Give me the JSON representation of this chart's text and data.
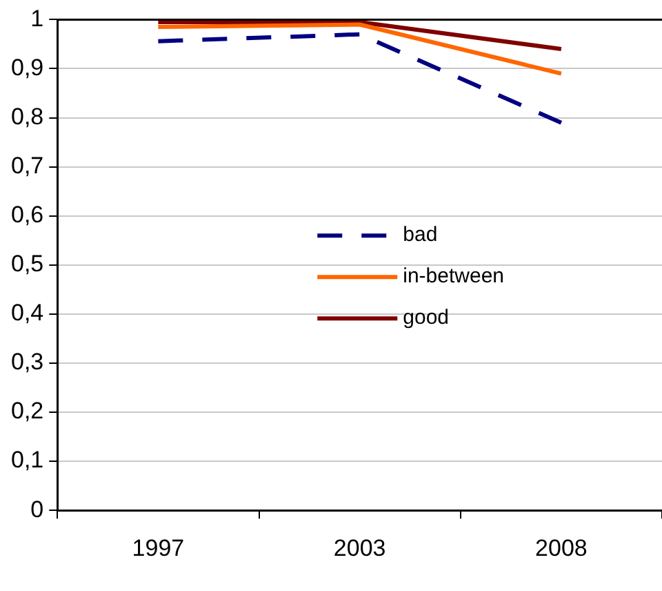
{
  "chart_data": {
    "type": "line",
    "categories": [
      "1997",
      "2003",
      "2008"
    ],
    "series": [
      {
        "name": "bad",
        "color": "#000080",
        "values": [
          0.956,
          0.97,
          0.79
        ],
        "line_style": "dashed"
      },
      {
        "name": "in-between",
        "color": "#ff6600",
        "values": [
          0.985,
          0.99,
          0.89
        ],
        "line_style": "solid"
      },
      {
        "name": "good",
        "color": "#800000",
        "values": [
          0.995,
          0.995,
          0.94
        ],
        "line_style": "solid"
      }
    ],
    "ylim": [
      0,
      1
    ],
    "yticks": [
      0,
      {
        "value": 0.1,
        "label": "0,1"
      },
      {
        "value": 0.2,
        "label": "0,2"
      },
      {
        "value": 0.3,
        "label": "0,3"
      },
      {
        "value": 0.4,
        "label": "0,4"
      },
      {
        "value": 0.5,
        "label": "0,5"
      },
      {
        "value": 0.6,
        "label": "0,6"
      },
      {
        "value": 0.7,
        "label": "0,7"
      },
      {
        "value": 0.8,
        "label": "0,8"
      },
      {
        "value": 0.9,
        "label": "0,9"
      },
      1
    ],
    "grid": "y",
    "legend": "center",
    "marker": "none"
  }
}
